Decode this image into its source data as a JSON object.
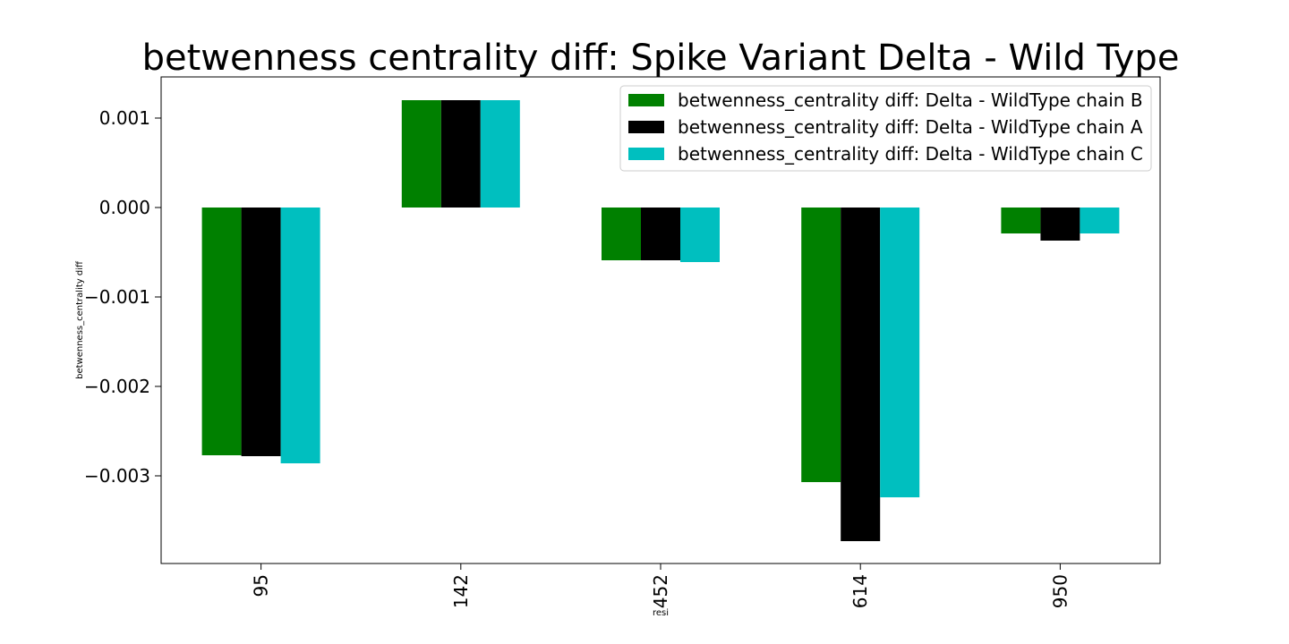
{
  "chart_data": {
    "type": "bar",
    "title": "betwenness centrality diff: Spike Variant Delta - Wild Type",
    "xlabel": "resi",
    "ylabel": "betwenness_centrality diff",
    "categories": [
      "95",
      "142",
      "452",
      "614",
      "950"
    ],
    "ylim": [
      -0.00398,
      0.00146
    ],
    "yticks": [
      0.001,
      0.0,
      -0.001,
      -0.002,
      -0.003
    ],
    "ytick_labels": [
      "0.001",
      "0.000",
      "−0.001",
      "−0.002",
      "−0.003"
    ],
    "grid": false,
    "legend_position": "top-right",
    "series": [
      {
        "name": "betwenness_centrality diff: Delta - WildType chain B",
        "color": "#008000",
        "values": [
          -0.00277,
          0.0012,
          -0.00059,
          -0.00307,
          -0.00029
        ]
      },
      {
        "name": "betwenness_centrality diff: Delta - WildType chain A",
        "color": "#000000",
        "values": [
          -0.00278,
          0.0012,
          -0.00059,
          -0.00373,
          -0.00037
        ]
      },
      {
        "name": "betwenness_centrality diff: Delta - WildType chain C",
        "color": "#00bfbf",
        "values": [
          -0.00286,
          0.0012,
          -0.00061,
          -0.00324,
          -0.00029
        ]
      }
    ]
  }
}
